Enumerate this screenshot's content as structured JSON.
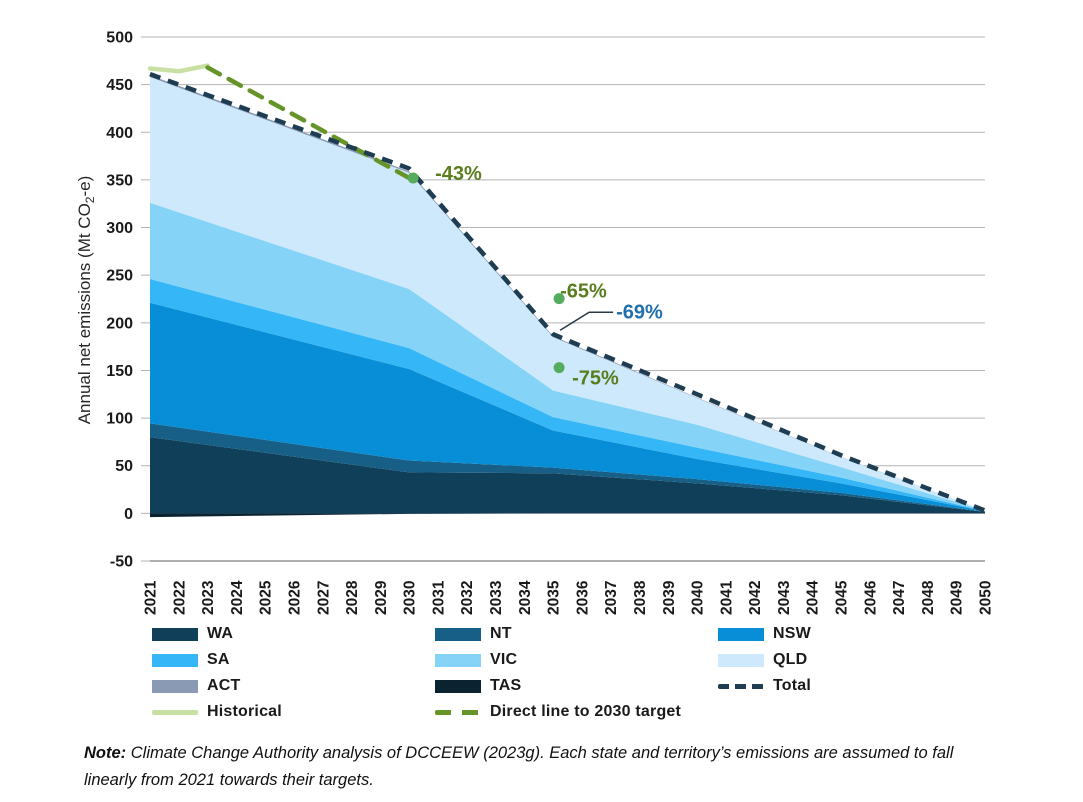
{
  "chart_data": {
    "type": "area",
    "stacked": true,
    "ylabel_parts": [
      "Annual net emissions (Mt CO",
      "2",
      "-e)"
    ],
    "ylim": [
      -50,
      500
    ],
    "yticks": [
      500,
      450,
      400,
      350,
      300,
      250,
      200,
      150,
      100,
      50,
      0,
      -50
    ],
    "grid": true,
    "x_tick_labels": [
      "2021",
      "2022",
      "2023",
      "2024",
      "2025",
      "2026",
      "2027",
      "2028",
      "2029",
      "2030",
      "2031",
      "2032",
      "2033",
      "2034",
      "2035",
      "2036",
      "2037",
      "2038",
      "2039",
      "2040",
      "2041",
      "2042",
      "2043",
      "2044",
      "2045",
      "2046",
      "2047",
      "2048",
      "2049",
      "2050"
    ],
    "sample_years": [
      2021,
      2025,
      2030,
      2035,
      2040,
      2045,
      2050
    ],
    "series": [
      {
        "name": "TAS",
        "color": "#0b2231",
        "values": [
          -4,
          -2.4,
          -0.5,
          0,
          0,
          0,
          0
        ]
      },
      {
        "name": "WA",
        "color": "#103f5a",
        "values": [
          80,
          63.6,
          43,
          42,
          31.5,
          19,
          1.5
        ]
      },
      {
        "name": "NT",
        "color": "#175f86",
        "values": [
          14.5,
          13.6,
          12.5,
          6,
          4.5,
          2.5,
          0.3
        ]
      },
      {
        "name": "NSW",
        "color": "#078ed6",
        "values": [
          126.5,
          112.9,
          96,
          39,
          21,
          10,
          0.5
        ]
      },
      {
        "name": "SA",
        "color": "#35b6f7",
        "values": [
          25,
          23.7,
          22,
          14,
          12,
          6,
          0.2
        ]
      },
      {
        "name": "VIC",
        "color": "#86d3f8",
        "values": [
          80,
          72,
          62,
          28,
          24,
          11,
          0.3
        ]
      },
      {
        "name": "QLD",
        "color": "#cde9fb",
        "values": [
          132,
          127.6,
          122,
          56,
          28,
          10.5,
          0.2
        ]
      },
      {
        "name": "ACT",
        "color": "#8a9ab5",
        "values": [
          2,
          1.8,
          1.5,
          1,
          0.5,
          0.3,
          0
        ]
      }
    ],
    "total_line": {
      "name": "Total",
      "color": "#1e3c52",
      "values": [
        461,
        417,
        362,
        188,
        125,
        61,
        3
      ]
    },
    "historical_line": {
      "name": "Historical",
      "color": "#c9e0a5",
      "x": [
        2021,
        2022,
        2023
      ],
      "values": [
        467,
        464,
        470
      ]
    },
    "direct_line": {
      "name": "Direct line to 2030 target",
      "color": "#669428",
      "x": [
        2023,
        2030
      ],
      "values": [
        468,
        352
      ]
    },
    "target_dots": [
      {
        "label": "-43%",
        "year": 2030,
        "value": 352,
        "dot_color": "#55ab5e",
        "text_color": "#5a7d1e"
      },
      {
        "label": "-65%",
        "year": 2035,
        "value": 216,
        "dot_color": "#55ab5e",
        "text_color": "#5a7d1e"
      },
      {
        "label": "-75%",
        "year": 2035,
        "value": 153,
        "dot_color": "#55ab5e",
        "text_color": "#5a7d1e"
      }
    ],
    "total_annotation": {
      "label": "-69%",
      "year": 2035,
      "value": 188,
      "text_color": "#2070ad"
    },
    "colors": {
      "gridline": "#b3b3b3",
      "axis_line": "#808080",
      "tick_text": "#1a1a1a"
    }
  },
  "legend": {
    "items": [
      {
        "id": "wa",
        "label": "WA",
        "swatch": "rect",
        "color": "#103f5a"
      },
      {
        "id": "nt",
        "label": "NT",
        "swatch": "rect",
        "color": "#175f86"
      },
      {
        "id": "nsw",
        "label": "NSW",
        "swatch": "rect",
        "color": "#078ed6"
      },
      {
        "id": "sa",
        "label": "SA",
        "swatch": "rect",
        "color": "#35b6f7"
      },
      {
        "id": "vic",
        "label": "VIC",
        "swatch": "rect",
        "color": "#86d3f8"
      },
      {
        "id": "qld",
        "label": "QLD",
        "swatch": "rect",
        "color": "#cde9fb"
      },
      {
        "id": "act",
        "label": "ACT",
        "swatch": "rect",
        "color": "#8a9ab5"
      },
      {
        "id": "tas",
        "label": "TAS",
        "swatch": "rect",
        "color": "#0b2231"
      },
      {
        "id": "total",
        "label": "Total",
        "swatch": "dash-total",
        "color": "#1e3c52"
      },
      {
        "id": "historical",
        "label": "Historical",
        "swatch": "line-solid",
        "color": "#c9e0a5"
      },
      {
        "id": "direct",
        "label": "Direct line to 2030 target",
        "swatch": "dash-direct",
        "color": "#669428"
      }
    ]
  },
  "note": {
    "prefix": "Note:",
    "body": " Climate Change Authority analysis of DCCEEW (2023g). Each state and territory’s emissions are assumed to fall linearly from 2021 towards their targets."
  }
}
